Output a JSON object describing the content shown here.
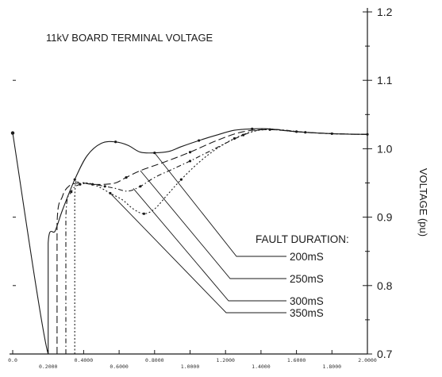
{
  "chart_data": {
    "type": "line",
    "title": "11kV BOARD TERMINAL VOLTAGE",
    "ylabel": "VOLTAGE (pu)",
    "xlabel": "",
    "xlim": [
      0.0,
      2.0
    ],
    "ylim": [
      0.7,
      1.2
    ],
    "y_ticks": [
      0.7,
      0.8,
      0.9,
      1.0,
      1.1,
      1.2
    ],
    "y_tick_labels": [
      "0.7",
      "0.8",
      "0.9",
      "1.0",
      "1.1",
      "1.2"
    ],
    "x_ticks": [
      0.0,
      0.2,
      0.4,
      0.6,
      0.8,
      1.0,
      1.2,
      1.4,
      1.6,
      1.8,
      2.0
    ],
    "x_tick_labels": [
      "0.0",
      "0.2000",
      "0.4000",
      "0.6000",
      "0.8000",
      "1.0000",
      "1.2000",
      "1.4000",
      "1.6000",
      "1.8000",
      "2.0000"
    ],
    "grid": false,
    "legend_title": "FAULT DURATION:",
    "series": [
      {
        "name": "200mS",
        "dash": "solid",
        "x": [
          0.0,
          0.2,
          0.2,
          0.24,
          0.28,
          0.35,
          0.42,
          0.5,
          0.58,
          0.65,
          0.72,
          0.8,
          0.88,
          0.95,
          1.05,
          1.15,
          1.25,
          1.35,
          1.45,
          1.6,
          1.8,
          2.0
        ],
        "y": [
          1.023,
          0.7,
          0.862,
          0.88,
          0.91,
          0.955,
          0.99,
          1.008,
          1.01,
          1.005,
          0.995,
          0.994,
          0.996,
          1.003,
          1.012,
          1.02,
          1.027,
          1.029,
          1.029,
          1.025,
          1.022,
          1.021
        ]
      },
      {
        "name": "250mS",
        "dash": "long-dash",
        "x": [
          0.25,
          0.25,
          0.28,
          0.32,
          0.38,
          0.45,
          0.52,
          0.58,
          0.64,
          0.72,
          0.85,
          1.0,
          1.15,
          1.3,
          1.45,
          1.6,
          1.8,
          2.0
        ],
        "y": [
          0.7,
          0.89,
          0.93,
          0.946,
          0.95,
          0.948,
          0.948,
          0.95,
          0.958,
          0.968,
          0.98,
          0.995,
          1.012,
          1.025,
          1.028,
          1.025,
          1.022,
          1.021
        ]
      },
      {
        "name": "300mS",
        "dash": "dash-dot",
        "x": [
          0.3,
          0.3,
          0.33,
          0.38,
          0.45,
          0.52,
          0.58,
          0.65,
          0.72,
          0.8,
          0.9,
          1.0,
          1.1,
          1.2,
          1.3,
          1.4,
          1.5,
          1.65,
          1.8,
          2.0
        ],
        "y": [
          0.7,
          0.9,
          0.937,
          0.948,
          0.948,
          0.945,
          0.942,
          0.938,
          0.945,
          0.958,
          0.97,
          0.982,
          0.995,
          1.008,
          1.02,
          1.028,
          1.028,
          1.024,
          1.022,
          1.021
        ]
      },
      {
        "name": "350mS",
        "dash": "dotted",
        "x": [
          0.35,
          0.35,
          0.38,
          0.42,
          0.48,
          0.55,
          0.62,
          0.68,
          0.74,
          0.8,
          0.87,
          0.95,
          1.05,
          1.15,
          1.25,
          1.35,
          1.45,
          1.6,
          1.8,
          2.0
        ],
        "y": [
          0.7,
          0.93,
          0.948,
          0.95,
          0.945,
          0.935,
          0.925,
          0.912,
          0.905,
          0.912,
          0.932,
          0.955,
          0.98,
          1.0,
          1.015,
          1.025,
          1.028,
          1.025,
          1.022,
          1.021
        ]
      }
    ]
  }
}
